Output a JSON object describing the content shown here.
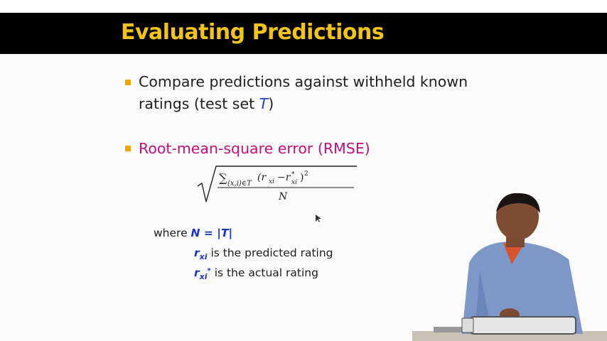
{
  "slide": {
    "title": "Evaluating Predictions",
    "bullet1": {
      "line1": "Compare predictions against withheld known",
      "line2_pre": "ratings (test set ",
      "line2_var": "T",
      "line2_post": ")"
    },
    "bullet2": {
      "text": "Root-mean-square error (RMSE)"
    },
    "where": {
      "where_label": "where ",
      "n_def": "N = |T|",
      "rxi_r": "r",
      "rxi_sub": "xi",
      "rxi_text": " is the predicted rating",
      "rxistar_r": "r",
      "rxistar_sub": "xi",
      "rxistar_sup": "*",
      "rxistar_text": " is the actual rating"
    }
  },
  "colors": {
    "title": "#f2c31a",
    "bullet": "#f0a400",
    "magenta": "#c0107a",
    "blue": "#1a35c0"
  }
}
